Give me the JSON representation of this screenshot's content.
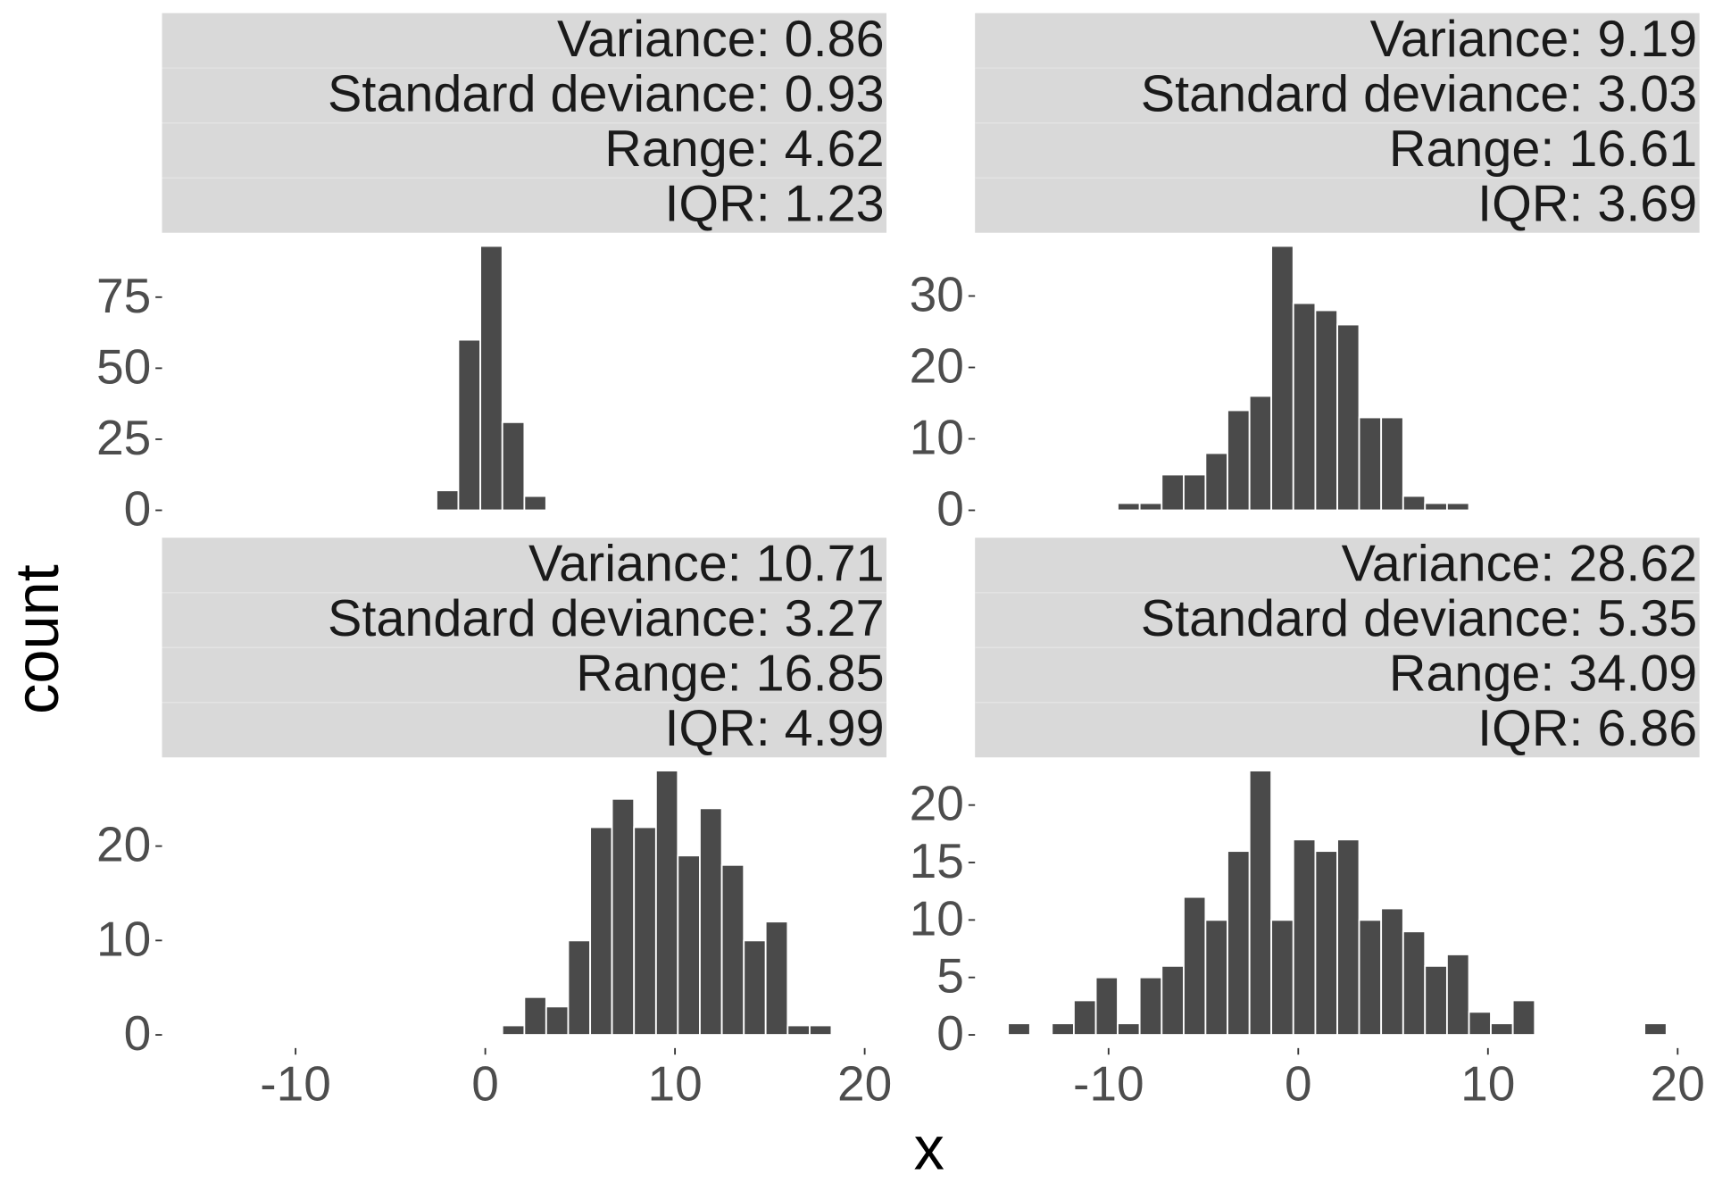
{
  "xlabel": "x",
  "ylabel": "count",
  "chart_data": [
    {
      "type": "histogram",
      "strip": [
        "Variance: 0.86",
        "Standard deviance: 0.93",
        "Range: 4.62",
        "IQR: 1.23"
      ],
      "bins": [
        -2.57,
        -1.42,
        -0.26,
        0.9,
        2.06,
        3.21
      ],
      "values": [
        7,
        60,
        93,
        31,
        5
      ],
      "color": "#4a4a4a",
      "xlim": [
        -17.04,
        21.15
      ],
      "ylim": [
        -4.65,
        97.65
      ],
      "yticks": [
        0,
        25,
        50,
        75
      ]
    },
    {
      "type": "histogram",
      "strip": [
        "Variance: 9.19",
        "Standard deviance: 3.03",
        "Range: 16.61",
        "IQR: 3.69"
      ],
      "bins": [
        -9.52,
        -8.36,
        -7.2,
        -6.04,
        -4.89,
        -3.73,
        -2.57,
        -1.42,
        -0.26,
        0.9,
        2.06,
        3.21,
        4.37,
        5.53,
        6.68,
        7.84,
        9.0
      ],
      "values": [
        1,
        1,
        5,
        5,
        8,
        14,
        16,
        37,
        29,
        28,
        26,
        13,
        13,
        2,
        1,
        1
      ],
      "color": "#4a4a4a",
      "xlim": [
        -17.04,
        21.15
      ],
      "ylim": [
        -1.85,
        38.85
      ],
      "yticks": [
        0,
        10,
        20,
        30
      ]
    },
    {
      "type": "histogram",
      "strip": [
        "Variance: 10.71",
        "Standard deviance: 3.27",
        "Range: 16.85",
        "IQR: 4.99"
      ],
      "bins": [
        0.9,
        2.06,
        3.21,
        4.37,
        5.53,
        6.68,
        7.84,
        9.0,
        10.15,
        11.31,
        12.47,
        13.63,
        14.78,
        15.94,
        17.1,
        18.25
      ],
      "values": [
        1,
        4,
        3,
        10,
        22,
        25,
        22,
        28,
        19,
        24,
        18,
        10,
        12,
        1,
        1
      ],
      "color": "#4a4a4a",
      "xlim": [
        -17.04,
        21.15
      ],
      "ylim": [
        -1.4,
        29.4
      ],
      "xticks": [
        -10,
        0,
        10,
        20
      ],
      "yticks": [
        0,
        10,
        20
      ]
    },
    {
      "type": "histogram",
      "strip": [
        "Variance: 28.62",
        "Standard deviance: 5.35",
        "Range: 34.09",
        "IQR: 6.86"
      ],
      "bins": [
        -15.3,
        -14.14,
        -12.99,
        -11.83,
        -10.67,
        -9.52,
        -8.36,
        -7.2,
        -6.04,
        -4.89,
        -3.73,
        -2.57,
        -1.42,
        -0.26,
        0.9,
        2.06,
        3.21,
        4.37,
        5.53,
        6.68,
        7.84,
        9.0,
        10.15,
        11.31,
        12.47,
        13.63,
        14.78,
        15.94,
        17.1,
        18.25,
        19.41
      ],
      "values": [
        1,
        0,
        1,
        3,
        5,
        1,
        5,
        6,
        12,
        10,
        16,
        23,
        10,
        17,
        16,
        17,
        10,
        11,
        9,
        6,
        7,
        2,
        1,
        3,
        0,
        0,
        0,
        0,
        0,
        1
      ],
      "color": "#4a4a4a",
      "xlim": [
        -17.04,
        21.15
      ],
      "ylim": [
        -1.15,
        24.15
      ],
      "xticks": [
        -10,
        0,
        10,
        20
      ],
      "yticks": [
        0,
        5,
        10,
        15,
        20
      ]
    }
  ]
}
